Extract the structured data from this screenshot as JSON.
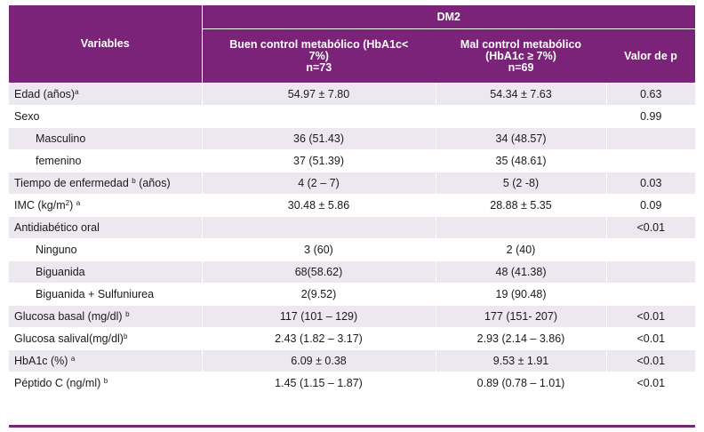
{
  "header": {
    "group": "DM2",
    "col_variables": "Variables",
    "col_buen": [
      "Buen control metabólico (HbA1c<",
      "7%)",
      "n=73"
    ],
    "col_mal": [
      "Mal control metabólico",
      "(HbA1c ≥ 7%)",
      "n=69"
    ],
    "col_p": "Valor de p"
  },
  "rows": [
    {
      "label": "Edad (años)",
      "sup": "a",
      "buen": "54.97 ± 7.80",
      "mal": "54.34 ± 7.63",
      "p": "0.63"
    },
    {
      "label": "Sexo",
      "sup": "",
      "buen": "",
      "mal": "",
      "p": "0.99"
    },
    {
      "label": "Masculino",
      "sup": "",
      "buen": "36 (51.43)",
      "mal": "34 (48.57)",
      "p": ""
    },
    {
      "label": "femenino",
      "sup": "",
      "buen": "37 (51.39)",
      "mal": "35 (48.61)",
      "p": ""
    },
    {
      "label": "Tiempo de enfermedad",
      "sup": "b",
      "label_after": " (años)",
      "buen": "4 (2 – 7)",
      "mal": "5 (2 -8)",
      "p": "0.03"
    },
    {
      "label": "IMC (kg/m",
      "sup2": "2",
      "label_after": ")",
      "sup": "a",
      "buen": "30.48 ± 5.86",
      "mal": "28.88 ± 5.35",
      "p": "0.09"
    },
    {
      "label": "Antidiabético oral",
      "sup": "",
      "buen": "",
      "mal": "",
      "p": "<0.01"
    },
    {
      "label": "Ninguno",
      "sup": "",
      "buen": "3 (60)",
      "mal": "2 (40)",
      "p": ""
    },
    {
      "label": "Biguanida",
      "sup": "",
      "buen": "68(58.62)",
      "mal": "48 (41.38)",
      "p": ""
    },
    {
      "label": "Biguanida + Sulfuniurea",
      "sup": "",
      "buen": "2(9.52)",
      "mal": "19 (90.48)",
      "p": ""
    },
    {
      "label": "Glucosa basal (mg/dl)",
      "sup": "b",
      "buen": "117 (101 – 129)",
      "mal": "177 (151- 207)",
      "p": "<0.01"
    },
    {
      "label": "Glucosa salival(mg/dl)",
      "sup": "b",
      "buen": "2.43 (1.82 – 3.17)",
      "mal": "2.93 (2.14 – 3.86)",
      "p": "<0.01"
    },
    {
      "label": "HbA1c (%)",
      "sup": "a",
      "buen": "6.09 ± 0.38",
      "mal": "9.53 ± 1.91",
      "p": "<0.01"
    },
    {
      "label": "Péptido C (ng/ml)",
      "sup": "b",
      "buen": "1.45 (1.15 – 1.87)",
      "mal": "0.89 (0.78 – 1.01)",
      "p": "<0.01"
    }
  ],
  "colors": {
    "header_bg": "#7a2379",
    "shade_bg": "#ede7ef"
  }
}
